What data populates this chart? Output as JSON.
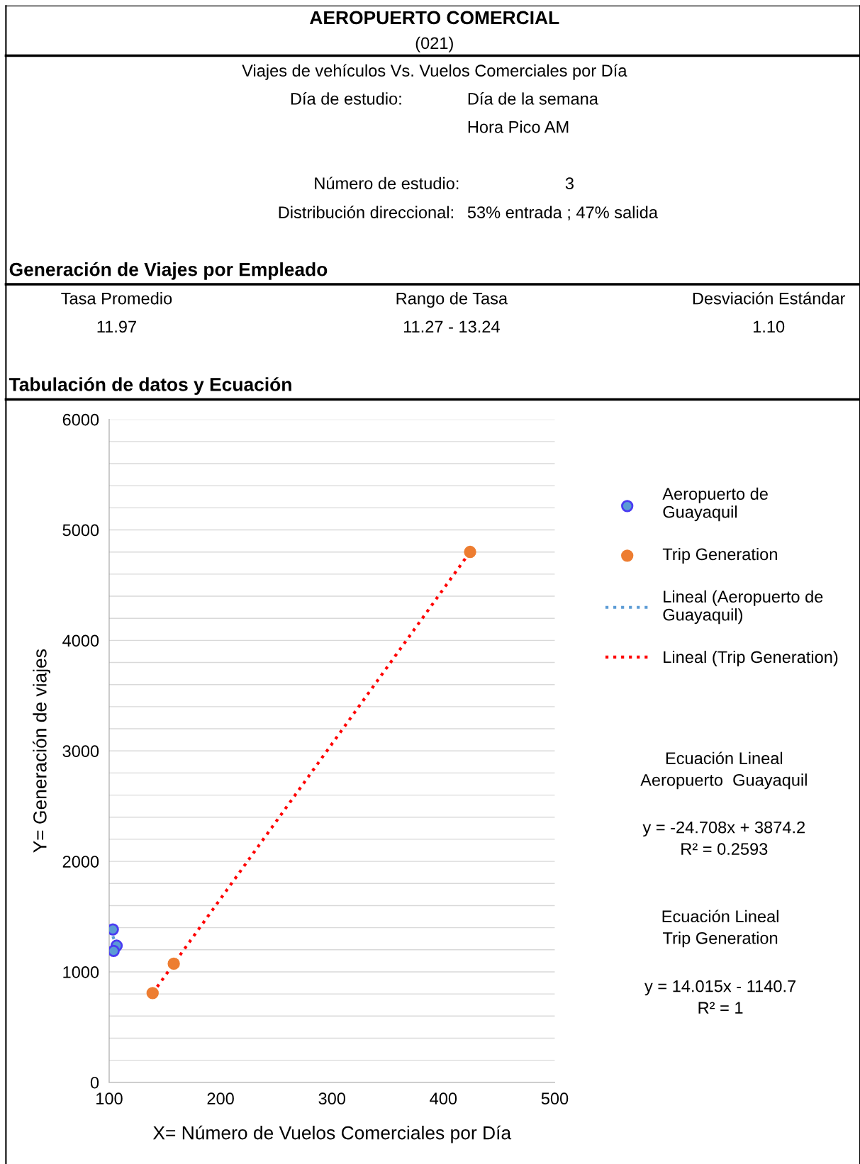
{
  "chart_data": {
    "type": "scatter",
    "title": "AEROPUERTO COMERCIAL",
    "subtitle": "(021)",
    "xlabel": "X= Número de Vuelos Comerciales por Día",
    "ylabel": "Y= Generación de viajes",
    "annotations": [
      "Viajes de vehículos Vs. Vuelos Comerciales por Día",
      "Día de estudio:",
      "Día de la semana",
      "Hora Pico AM",
      "Número de estudio:",
      "3",
      "Distribución direccional:",
      "53% entrada ; 47% salida",
      "Generación de Viajes por Empleado",
      "Tasa Promedio",
      "11.97",
      "Rango de Tasa",
      "11.27 - 13.24",
      "Desviación Estándar",
      "1.10",
      "Tabulación de datos y Ecuación",
      "Ecuación Lineal\nAeropuerto  Guayaquil",
      "y = -24.708x + 3874.2\nR² = 0.2593",
      "Ecuación Lineal\nTrip Generation",
      "y = 14.015x - 1140.7\nR² = 1"
    ],
    "series": [
      {
        "name": "Aeropuerto de\nGuayaquil",
        "type": "scatter",
        "color": "#5b9bd5",
        "marker": "circle",
        "x": [
          103.3,
          106.7,
          104
        ],
        "values": [
          1384,
          1237,
          1190
        ]
      },
      {
        "name": "Trip Generation",
        "type": "scatter",
        "color": "#ed7d31",
        "marker": "circle",
        "x": [
          139,
          158,
          424
        ],
        "values": [
          808,
          1074,
          4801
        ]
      },
      {
        "name": "Lineal (Aeropuerto de\nGuayaquil)",
        "type": "line",
        "color": "#5b9bd5",
        "line_style": "dotted",
        "x": [
          103.3,
          106.7
        ],
        "values": [
          1322,
          1238
        ]
      },
      {
        "name": "Lineal (Trip Generation)",
        "type": "line",
        "color": "#ff0000",
        "line_style": "dotted",
        "x": [
          139,
          424
        ],
        "values": [
          807,
          4801
        ]
      }
    ],
    "xlim": [
      100,
      500
    ],
    "xticks": [
      100,
      200,
      300,
      400,
      500
    ],
    "ylim": [
      0,
      6000
    ],
    "yticks": [
      0,
      {
        "value": 200,
        "label": null
      },
      {
        "value": 400,
        "label": null
      },
      {
        "value": 600,
        "label": null
      },
      {
        "value": 800,
        "label": null
      },
      1000,
      {
        "value": 1200,
        "label": null
      },
      {
        "value": 1400,
        "label": null
      },
      {
        "value": 1600,
        "label": null
      },
      {
        "value": 1800,
        "label": null
      },
      2000,
      {
        "value": 2200,
        "label": null
      },
      {
        "value": 2400,
        "label": null
      },
      {
        "value": 2600,
        "label": null
      },
      {
        "value": 2800,
        "label": null
      },
      3000,
      {
        "value": 3200,
        "label": null
      },
      {
        "value": 3400,
        "label": null
      },
      {
        "value": 3600,
        "label": null
      },
      {
        "value": 3800,
        "label": null
      },
      4000,
      {
        "value": 4200,
        "label": null
      },
      {
        "value": 4400,
        "label": null
      },
      {
        "value": 4600,
        "label": null
      },
      {
        "value": 4800,
        "label": null
      },
      5000,
      {
        "value": 5200,
        "label": null
      },
      {
        "value": 5400,
        "label": null
      },
      {
        "value": 5600,
        "label": null
      },
      {
        "value": 5800,
        "label": null
      },
      6000
    ],
    "grid": "y",
    "legend": "right"
  }
}
